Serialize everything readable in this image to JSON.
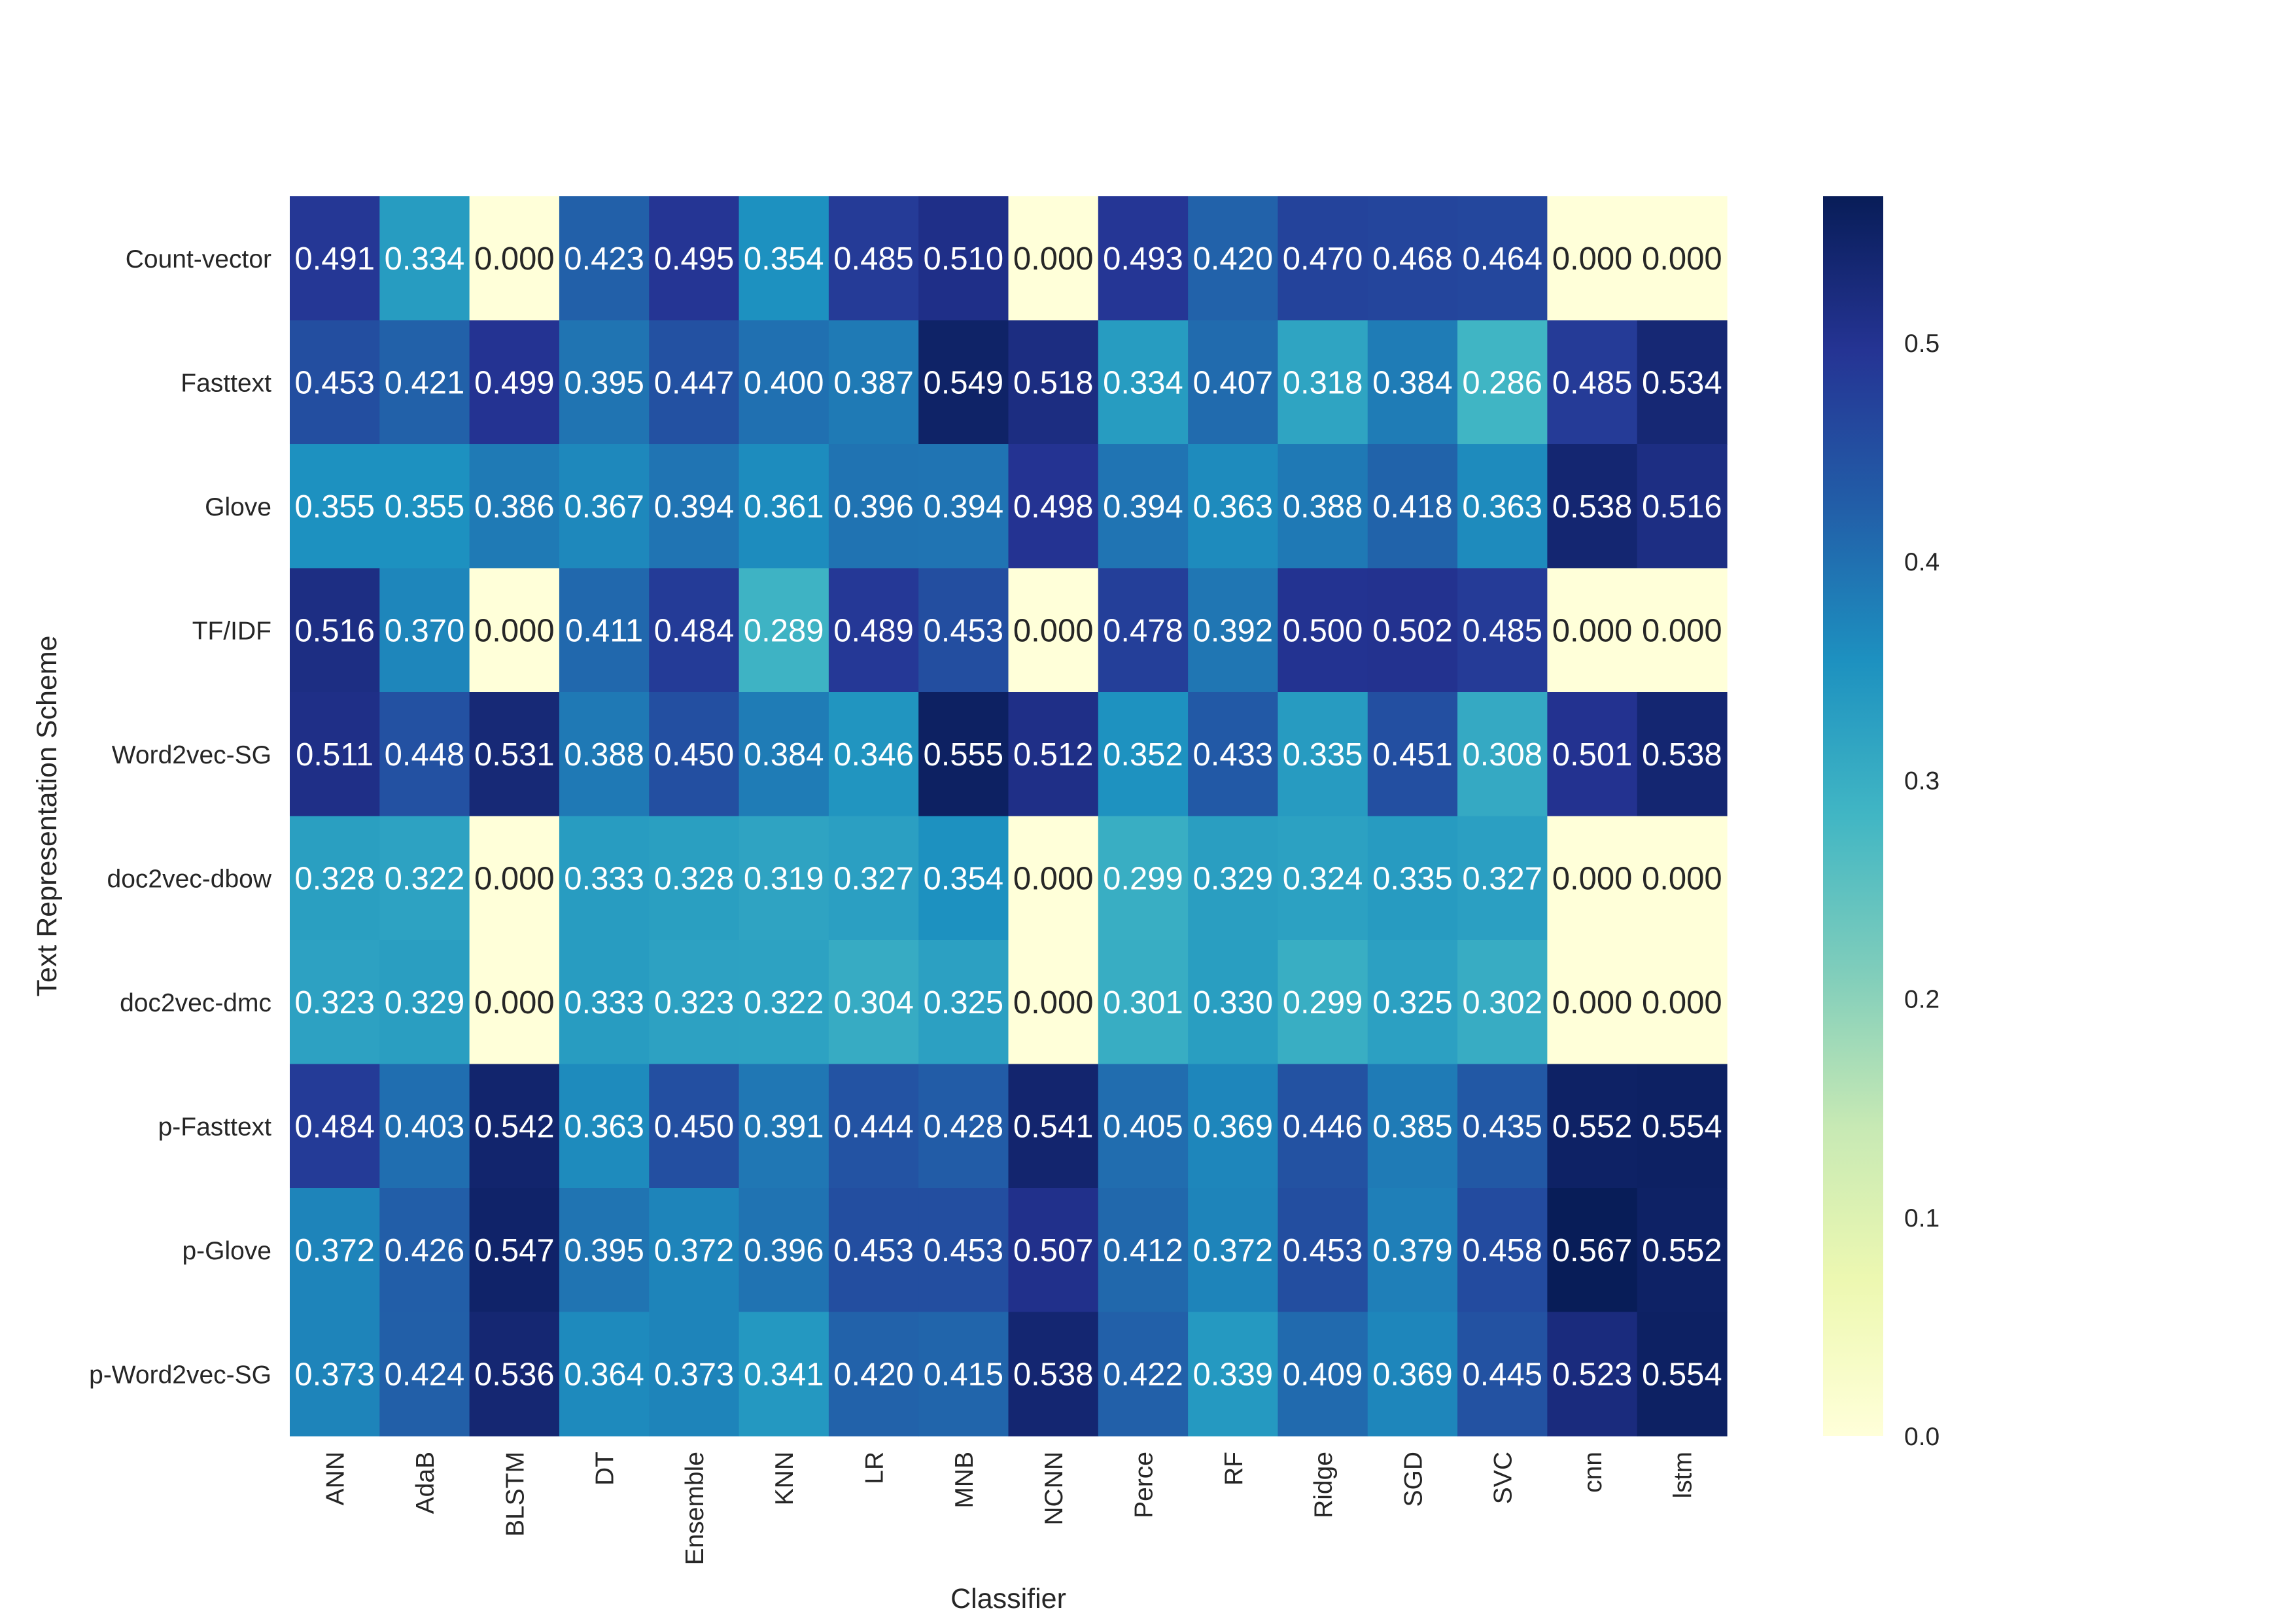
{
  "chart_data": {
    "type": "heatmap",
    "title": "",
    "xlabel": "Classifier",
    "ylabel": "Text Representation Scheme",
    "x_categories": [
      "ANN",
      "AdaB",
      "BLSTM",
      "DT",
      "Ensemble",
      "KNN",
      "LR",
      "MNB",
      "NCNN",
      "Perce",
      "RF",
      "Ridge",
      "SGD",
      "SVC",
      "cnn",
      "lstm"
    ],
    "y_categories": [
      "Count-vector",
      "Fasttext",
      "Glove",
      "TF/IDF",
      "Word2vec-SG",
      "doc2vec-dbow",
      "doc2vec-dmc",
      "p-Fasttext",
      "p-Glove",
      "p-Word2vec-SG"
    ],
    "values": [
      [
        0.491,
        0.334,
        0.0,
        0.423,
        0.495,
        0.354,
        0.485,
        0.51,
        0.0,
        0.493,
        0.42,
        0.47,
        0.468,
        0.464,
        0.0,
        0.0
      ],
      [
        0.453,
        0.421,
        0.499,
        0.395,
        0.447,
        0.4,
        0.387,
        0.549,
        0.518,
        0.334,
        0.407,
        0.318,
        0.384,
        0.286,
        0.485,
        0.534
      ],
      [
        0.355,
        0.355,
        0.386,
        0.367,
        0.394,
        0.361,
        0.396,
        0.394,
        0.498,
        0.394,
        0.363,
        0.388,
        0.418,
        0.363,
        0.538,
        0.516
      ],
      [
        0.516,
        0.37,
        0.0,
        0.411,
        0.484,
        0.289,
        0.489,
        0.453,
        0.0,
        0.478,
        0.392,
        0.5,
        0.502,
        0.485,
        0.0,
        0.0
      ],
      [
        0.511,
        0.448,
        0.531,
        0.388,
        0.45,
        0.384,
        0.346,
        0.555,
        0.512,
        0.352,
        0.433,
        0.335,
        0.451,
        0.308,
        0.501,
        0.538
      ],
      [
        0.328,
        0.322,
        0.0,
        0.333,
        0.328,
        0.319,
        0.327,
        0.354,
        0.0,
        0.299,
        0.329,
        0.324,
        0.335,
        0.327,
        0.0,
        0.0
      ],
      [
        0.323,
        0.329,
        0.0,
        0.333,
        0.323,
        0.322,
        0.304,
        0.325,
        0.0,
        0.301,
        0.33,
        0.299,
        0.325,
        0.302,
        0.0,
        0.0
      ],
      [
        0.484,
        0.403,
        0.542,
        0.363,
        0.45,
        0.391,
        0.444,
        0.428,
        0.541,
        0.405,
        0.369,
        0.446,
        0.385,
        0.435,
        0.552,
        0.554
      ],
      [
        0.372,
        0.426,
        0.547,
        0.395,
        0.372,
        0.396,
        0.453,
        0.453,
        0.507,
        0.412,
        0.372,
        0.453,
        0.379,
        0.458,
        0.567,
        0.552
      ],
      [
        0.373,
        0.424,
        0.536,
        0.364,
        0.373,
        0.341,
        0.42,
        0.415,
        0.538,
        0.422,
        0.339,
        0.409,
        0.369,
        0.445,
        0.523,
        0.554
      ]
    ],
    "value_format": "3 decimals",
    "colormap": "YlGnBu",
    "vmin": 0.0,
    "vmax": 0.567,
    "colorbar_ticks": [
      "0.0",
      "0.1",
      "0.2",
      "0.3",
      "0.4",
      "0.5"
    ],
    "colorbar_tick_values": [
      0.0,
      0.1,
      0.2,
      0.3,
      0.4,
      0.5
    ],
    "legend": "colorbar-right"
  },
  "colors": {
    "colormap_stops": [
      "#ffffd9",
      "#edf8b1",
      "#c7e9b4",
      "#7fcdbb",
      "#41b6c4",
      "#1d91c0",
      "#225ea8",
      "#253494",
      "#081d58"
    ],
    "text_dark": "#262626",
    "text_light": "#ffffff"
  }
}
